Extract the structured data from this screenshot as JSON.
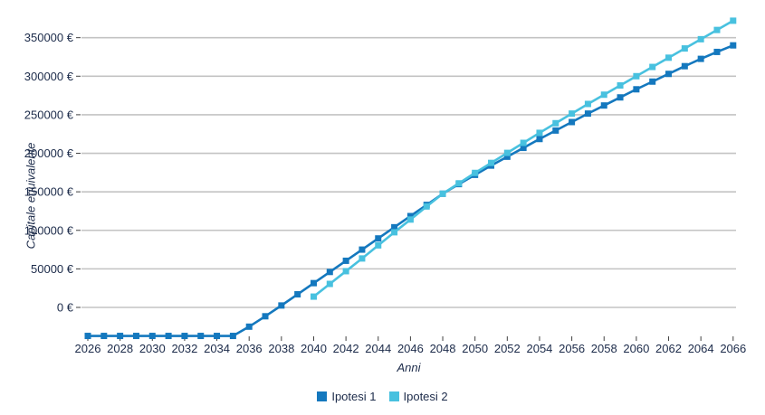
{
  "chart_data": {
    "type": "line",
    "title": "",
    "xlabel": "Anni",
    "ylabel": "Capitale equivalente",
    "xlim": [
      2026,
      2066
    ],
    "ylim": [
      -40000,
      382000
    ],
    "grid": "horizontal",
    "legend_position": "bottom-center",
    "x_tick_step": 2,
    "x_ticks": [
      2026,
      2028,
      2030,
      2032,
      2034,
      2036,
      2038,
      2040,
      2042,
      2044,
      2046,
      2048,
      2050,
      2052,
      2054,
      2056,
      2058,
      2060,
      2062,
      2064,
      2066
    ],
    "y_ticks": [
      {
        "value": 0,
        "label": "0 €"
      },
      {
        "value": 50000,
        "label": "50000 €"
      },
      {
        "value": 100000,
        "label": "100000 €"
      },
      {
        "value": 150000,
        "label": "150000 €"
      },
      {
        "value": 200000,
        "label": "200000 €"
      },
      {
        "value": 250000,
        "label": "250000 €"
      },
      {
        "value": 300000,
        "label": "300000 €"
      },
      {
        "value": 350000,
        "label": "350000 €"
      }
    ],
    "series": [
      {
        "name": "Ipotesi 1",
        "color": "#1478be",
        "marker": "square",
        "x": [
          2026,
          2027,
          2028,
          2029,
          2030,
          2031,
          2032,
          2033,
          2034,
          2035,
          2036,
          2037,
          2038,
          2039,
          2040,
          2041,
          2042,
          2043,
          2044,
          2045,
          2046,
          2047,
          2048,
          2049,
          2050,
          2051,
          2052,
          2053,
          2054,
          2055,
          2056,
          2057,
          2058,
          2059,
          2060,
          2061,
          2062,
          2063,
          2064,
          2065,
          2066
        ],
        "values": [
          -37000,
          -37000,
          -37000,
          -37000,
          -37000,
          -37000,
          -37000,
          -37000,
          -37000,
          -37000,
          -25000,
          -11500,
          2500,
          17000,
          31500,
          46000,
          60500,
          75000,
          89500,
          104000,
          118500,
          133000,
          147500,
          160000,
          172000,
          184000,
          195500,
          207000,
          218500,
          229500,
          240500,
          251500,
          262000,
          272500,
          283000,
          293000,
          303000,
          313000,
          322500,
          331500,
          340000
        ]
      },
      {
        "name": "Ipotesi 2",
        "color": "#48c1df",
        "marker": "square",
        "x": [
          2040,
          2041,
          2042,
          2043,
          2044,
          2045,
          2046,
          2047,
          2048,
          2049,
          2050,
          2051,
          2052,
          2053,
          2054,
          2055,
          2056,
          2057,
          2058,
          2059,
          2060,
          2061,
          2062,
          2063,
          2064,
          2065,
          2066
        ],
        "values": [
          14000,
          30500,
          47000,
          63500,
          80500,
          97500,
          114000,
          131000,
          147500,
          161000,
          174500,
          187500,
          200500,
          213500,
          226500,
          239000,
          251500,
          264000,
          276000,
          288000,
          300000,
          312000,
          324000,
          336000,
          348000,
          360000,
          372000
        ]
      }
    ],
    "colors": {
      "gridline": "#c3c3c3",
      "tick_mark": "#404040",
      "axis_text": "#1c2b4a",
      "background": "#ffffff"
    },
    "legend": {
      "items": [
        {
          "label": "Ipotesi 1",
          "color": "#1478be"
        },
        {
          "label": "Ipotesi 2",
          "color": "#48c1df"
        }
      ]
    }
  }
}
